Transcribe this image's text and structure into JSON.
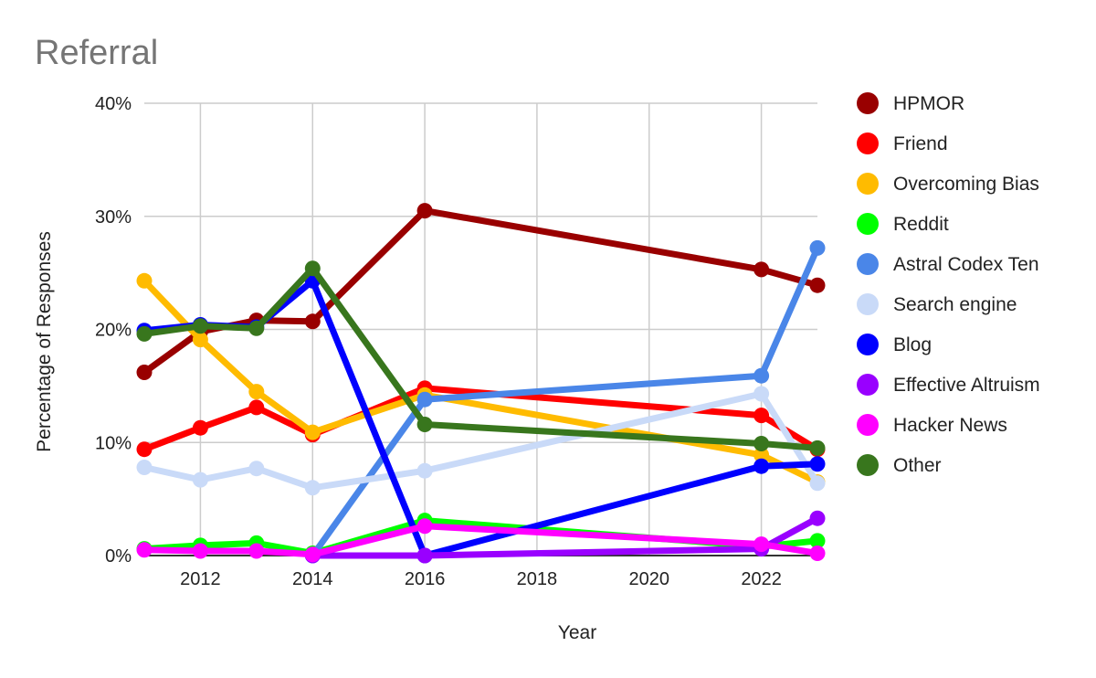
{
  "chart_data": {
    "type": "line",
    "title": "Referral",
    "xlabel": "Year",
    "ylabel": "Percentage of Responses",
    "xlim": [
      2011,
      2023
    ],
    "ylim": [
      0,
      40
    ],
    "x_ticks": [
      "2012",
      "2014",
      "2016",
      "2018",
      "2020",
      "2022"
    ],
    "y_ticks": [
      "0%",
      "10%",
      "20%",
      "30%",
      "40%"
    ],
    "grid": true,
    "legend_position": "right",
    "x": [
      2011,
      2012,
      2013,
      2014,
      2016,
      2022,
      2023
    ],
    "series": [
      {
        "name": "HPMOR",
        "color": "#990000",
        "values": [
          16.2,
          19.8,
          20.8,
          20.7,
          30.5,
          25.3,
          23.9
        ]
      },
      {
        "name": "Friend",
        "color": "#ff0000",
        "values": [
          9.4,
          11.3,
          13.1,
          10.7,
          14.8,
          12.4,
          9.4
        ]
      },
      {
        "name": "Overcoming Bias",
        "color": "#ffbb00",
        "values": [
          24.3,
          19.1,
          14.5,
          10.9,
          14.2,
          8.9,
          6.5
        ]
      },
      {
        "name": "Reddit",
        "color": "#00ff00",
        "values": [
          0.6,
          0.9,
          1.1,
          0.2,
          3.1,
          0.8,
          1.3
        ]
      },
      {
        "name": "Astral Codex Ten",
        "color": "#4a86e8",
        "values": [
          null,
          null,
          null,
          0.0,
          13.8,
          15.9,
          27.2
        ]
      },
      {
        "name": "Search engine",
        "color": "#c9daf8",
        "values": [
          7.8,
          6.7,
          7.7,
          6.0,
          7.5,
          14.3,
          6.4
        ]
      },
      {
        "name": "Blog",
        "color": "#0000ff",
        "values": [
          19.9,
          20.4,
          20.2,
          24.3,
          0.0,
          7.9,
          8.1
        ]
      },
      {
        "name": "Effective Altruism",
        "color": "#9900ff",
        "values": [
          null,
          null,
          null,
          0.0,
          0.0,
          0.6,
          3.3
        ]
      },
      {
        "name": "Hacker News",
        "color": "#ff00ff",
        "values": [
          0.5,
          0.4,
          0.4,
          0.1,
          2.6,
          1.0,
          0.2
        ]
      },
      {
        "name": "Other",
        "color": "#38761d",
        "values": [
          19.6,
          20.3,
          20.1,
          25.4,
          11.6,
          9.9,
          9.5
        ]
      }
    ]
  }
}
